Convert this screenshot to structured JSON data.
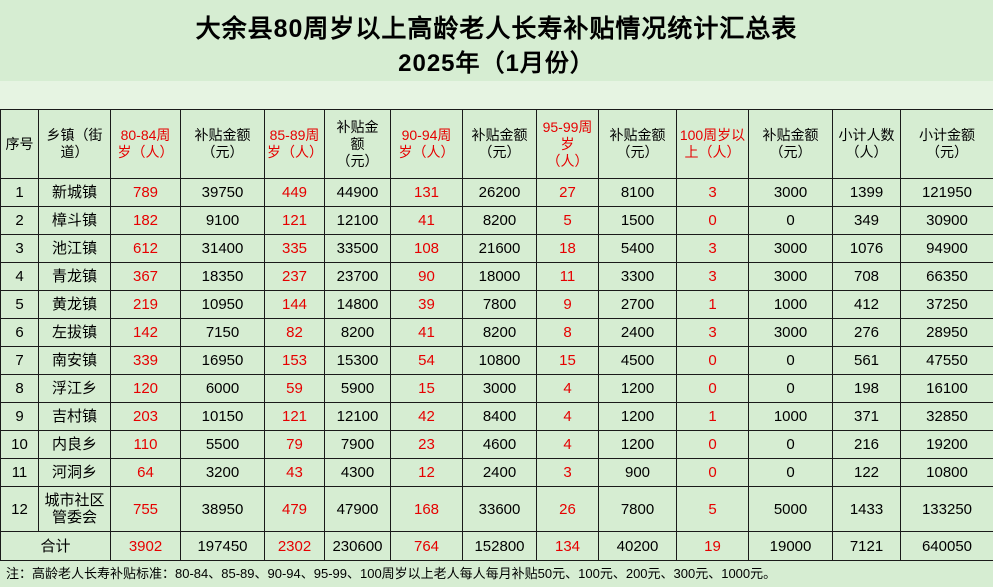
{
  "page": {
    "title": "大余县80周岁以上高龄老人长寿补贴情况统计汇总表",
    "subtitle": "2025年（1月份）",
    "footnote": "注：高龄老人长寿补贴标准：80-84、85-89、90-94、95-99、100周岁以上老人每人每月补贴50元、100元、200元、300元、1000元。"
  },
  "colors": {
    "page_background": "#d6edd2",
    "spacer_background": "#e6f4e2",
    "red_text": "#e60000",
    "border": "#1a1a1a"
  },
  "table": {
    "headers": [
      "序号",
      "乡镇（街\n道）",
      "80-84周\n岁（人）",
      "补贴金额\n（元）",
      "85-89周\n岁（人）",
      "补贴金\n额\n（元）",
      "90-94周\n岁（人）",
      "补贴金额\n（元）",
      "95-99周\n岁\n（人）",
      "补贴金额\n（元）",
      "100周岁以\n上（人）",
      "补贴金额\n（元）",
      "小计人数\n（人）",
      "小计金额\n（元）"
    ],
    "red_columns": [
      2,
      4,
      6,
      8,
      10
    ],
    "rows": [
      [
        "1",
        "新城镇",
        "789",
        "39750",
        "449",
        "44900",
        "131",
        "26200",
        "27",
        "8100",
        "3",
        "3000",
        "1399",
        "121950"
      ],
      [
        "2",
        "樟斗镇",
        "182",
        "9100",
        "121",
        "12100",
        "41",
        "8200",
        "5",
        "1500",
        "0",
        "0",
        "349",
        "30900"
      ],
      [
        "3",
        "池江镇",
        "612",
        "31400",
        "335",
        "33500",
        "108",
        "21600",
        "18",
        "5400",
        "3",
        "3000",
        "1076",
        "94900"
      ],
      [
        "4",
        "青龙镇",
        "367",
        "18350",
        "237",
        "23700",
        "90",
        "18000",
        "11",
        "3300",
        "3",
        "3000",
        "708",
        "66350"
      ],
      [
        "5",
        "黄龙镇",
        "219",
        "10950",
        "144",
        "14800",
        "39",
        "7800",
        "9",
        "2700",
        "1",
        "1000",
        "412",
        "37250"
      ],
      [
        "6",
        "左拔镇",
        "142",
        "7150",
        "82",
        "8200",
        "41",
        "8200",
        "8",
        "2400",
        "3",
        "3000",
        "276",
        "28950"
      ],
      [
        "7",
        "南安镇",
        "339",
        "16950",
        "153",
        "15300",
        "54",
        "10800",
        "15",
        "4500",
        "0",
        "0",
        "561",
        "47550"
      ],
      [
        "8",
        "浮江乡",
        "120",
        "6000",
        "59",
        "5900",
        "15",
        "3000",
        "4",
        "1200",
        "0",
        "0",
        "198",
        "16100"
      ],
      [
        "9",
        "吉村镇",
        "203",
        "10150",
        "121",
        "12100",
        "42",
        "8400",
        "4",
        "1200",
        "1",
        "1000",
        "371",
        "32850"
      ],
      [
        "10",
        "内良乡",
        "110",
        "5500",
        "79",
        "7900",
        "23",
        "4600",
        "4",
        "1200",
        "0",
        "0",
        "216",
        "19200"
      ],
      [
        "11",
        "河洞乡",
        "64",
        "3200",
        "43",
        "4300",
        "12",
        "2400",
        "3",
        "900",
        "0",
        "0",
        "122",
        "10800"
      ],
      [
        "12",
        "城市社区管委会",
        "755",
        "38950",
        "479",
        "47900",
        "168",
        "33600",
        "26",
        "7800",
        "5",
        "5000",
        "1433",
        "133250"
      ]
    ],
    "total_label": "合计",
    "total_values": [
      "3902",
      "197450",
      "2302",
      "230600",
      "764",
      "152800",
      "134",
      "40200",
      "19",
      "19000",
      "7121",
      "640050"
    ]
  }
}
